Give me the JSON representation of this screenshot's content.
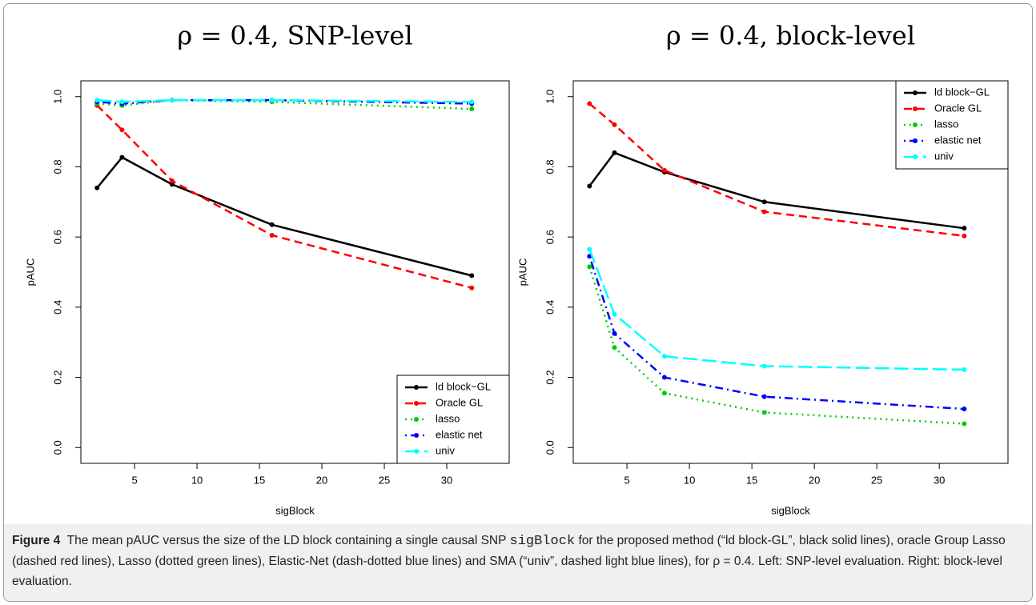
{
  "chart_data": [
    {
      "type": "line",
      "title": "ρ = 0.4, SNP-level",
      "x_label": "sigBlock",
      "y_label": "pAUC",
      "x": [
        2,
        4,
        8,
        16,
        32
      ],
      "xlim": [
        0.7,
        35
      ],
      "ylim": [
        -0.045,
        1.045
      ],
      "xticks": [
        5,
        10,
        15,
        20,
        25,
        30
      ],
      "yticks": [
        {
          "value": 0,
          "label": "0.0"
        },
        0.2,
        0.4,
        0.6,
        0.8,
        {
          "value": 1,
          "label": "1.0"
        }
      ],
      "legend": "bottom-right",
      "series": [
        {
          "name": "ld block−GL",
          "color": "#000000",
          "dash": "solid",
          "values": [
            0.74,
            0.827,
            0.75,
            0.635,
            0.49
          ]
        },
        {
          "name": "Oracle GL",
          "color": "#ff0000",
          "dash": "dashed",
          "values": [
            0.975,
            0.905,
            0.76,
            0.605,
            0.455
          ]
        },
        {
          "name": "lasso",
          "color": "#00cd00",
          "dash": "dotted",
          "values": [
            0.98,
            0.975,
            0.99,
            0.985,
            0.965
          ]
        },
        {
          "name": "elastic net",
          "color": "#0000ff",
          "dash": "dotdash",
          "values": [
            0.985,
            0.98,
            0.99,
            0.99,
            0.98
          ]
        },
        {
          "name": "univ",
          "color": "#00ffff",
          "dash": "longdash",
          "values": [
            0.99,
            0.985,
            0.99,
            0.99,
            0.985
          ]
        }
      ]
    },
    {
      "type": "line",
      "title": "ρ = 0.4, block-level",
      "x_label": "sigBlock",
      "y_label": "pAUC",
      "x": [
        2,
        4,
        8,
        16,
        32
      ],
      "xlim": [
        0.7,
        35.5
      ],
      "ylim": [
        -0.045,
        1.045
      ],
      "xticks": [
        5,
        10,
        15,
        20,
        25,
        30
      ],
      "yticks": [
        {
          "value": 0,
          "label": "0.0"
        },
        0.2,
        0.4,
        0.6,
        0.8,
        {
          "value": 1,
          "label": "1.0"
        }
      ],
      "legend": "top-right",
      "series": [
        {
          "name": "ld block−GL",
          "color": "#000000",
          "dash": "solid",
          "values": [
            0.745,
            0.84,
            0.785,
            0.7,
            0.625
          ]
        },
        {
          "name": "Oracle GL",
          "color": "#ff0000",
          "dash": "dashed",
          "values": [
            0.98,
            0.92,
            0.79,
            0.672,
            0.603
          ]
        },
        {
          "name": "lasso",
          "color": "#00cd00",
          "dash": "dotted",
          "values": [
            0.515,
            0.285,
            0.155,
            0.1,
            0.068
          ]
        },
        {
          "name": "elastic net",
          "color": "#0000ff",
          "dash": "dotdash",
          "values": [
            0.545,
            0.325,
            0.2,
            0.145,
            0.11
          ]
        },
        {
          "name": "univ",
          "color": "#00ffff",
          "dash": "longdash",
          "values": [
            0.565,
            0.38,
            0.26,
            0.232,
            0.222
          ]
        }
      ]
    }
  ],
  "caption": {
    "label": "Figure 4",
    "text_before": "The mean pAUC versus the size of the LD block containing a single causal SNP",
    "code": "sigBlock",
    "text_after": "for the proposed method (“ld block-GL”, black solid lines), oracle Group Lasso (dashed red lines), Lasso (dotted green lines), Elastic-Net (dash-dotted blue lines) and SMA (“univ”, dashed light blue lines), for ρ = 0.4. Left: SNP-level evaluation. Right: block-level evaluation."
  }
}
